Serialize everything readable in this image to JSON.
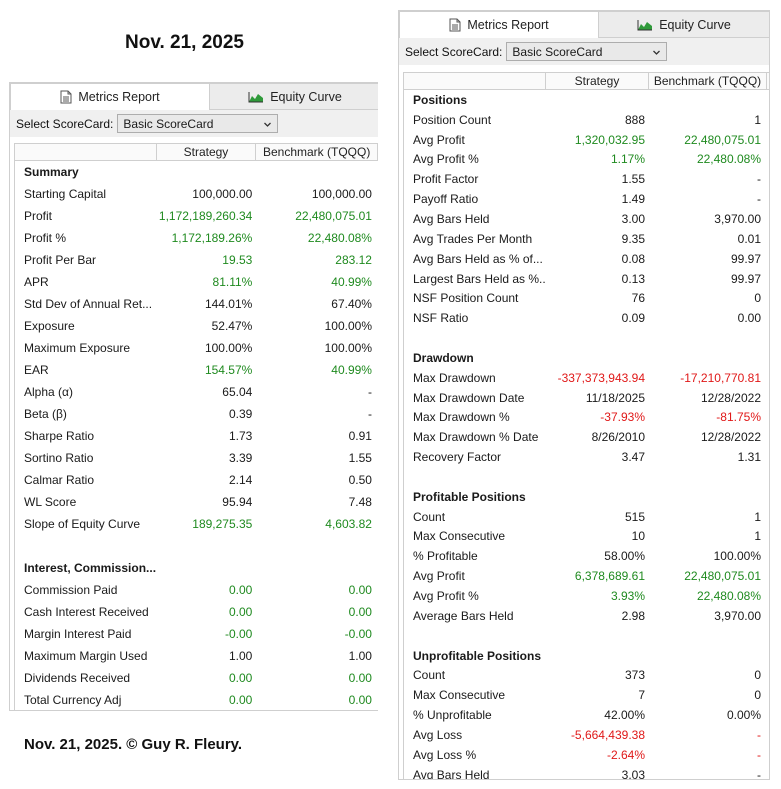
{
  "captions": {
    "top_date": "Nov. 21, 2025",
    "bottom_credit": "Nov. 21, 2025. © Guy R. Fleury."
  },
  "colors": {
    "positive": "#1f8a1f",
    "negative": "#e01818",
    "neutral": "#1a1a1a"
  },
  "tabs": [
    {
      "label": "Metrics Report",
      "icon": "document-icon",
      "active": true
    },
    {
      "label": "Equity Curve",
      "icon": "area-chart-icon",
      "active": false
    }
  ],
  "scorecard": {
    "label": "Select ScoreCard:",
    "value": "Basic ScoreCard"
  },
  "columns": {
    "strategy": "Strategy",
    "benchmark": "Benchmark (TQQQ)"
  },
  "left_rows": [
    {
      "type": "section",
      "name": "Summary"
    },
    {
      "name": "Starting Capital",
      "s": "100,000.00",
      "sc": "neu",
      "b": "100,000.00",
      "bc": "neu"
    },
    {
      "name": "Profit",
      "s": "1,172,189,260.34",
      "sc": "pos",
      "b": "22,480,075.01",
      "bc": "pos"
    },
    {
      "name": "Profit %",
      "s": "1,172,189.26%",
      "sc": "pos",
      "b": "22,480.08%",
      "bc": "pos"
    },
    {
      "name": "Profit Per Bar",
      "s": "19.53",
      "sc": "pos",
      "b": "283.12",
      "bc": "pos"
    },
    {
      "name": "APR",
      "s": "81.11%",
      "sc": "pos",
      "b": "40.99%",
      "bc": "pos"
    },
    {
      "name": "Std Dev of Annual Ret...",
      "s": "144.01%",
      "sc": "neu",
      "b": "67.40%",
      "bc": "neu"
    },
    {
      "name": "Exposure",
      "s": "52.47%",
      "sc": "neu",
      "b": "100.00%",
      "bc": "neu"
    },
    {
      "name": "Maximum Exposure",
      "s": "100.00%",
      "sc": "neu",
      "b": "100.00%",
      "bc": "neu"
    },
    {
      "name": "EAR",
      "s": "154.57%",
      "sc": "pos",
      "b": "40.99%",
      "bc": "pos"
    },
    {
      "name": "Alpha (α)",
      "s": "65.04",
      "sc": "neu",
      "b": "-",
      "bc": "neu"
    },
    {
      "name": "Beta (β)",
      "s": "0.39",
      "sc": "neu",
      "b": "-",
      "bc": "neu"
    },
    {
      "name": "Sharpe Ratio",
      "s": "1.73",
      "sc": "neu",
      "b": "0.91",
      "bc": "neu"
    },
    {
      "name": "Sortino Ratio",
      "s": "3.39",
      "sc": "neu",
      "b": "1.55",
      "bc": "neu"
    },
    {
      "name": "Calmar Ratio",
      "s": "2.14",
      "sc": "neu",
      "b": "0.50",
      "bc": "neu"
    },
    {
      "name": "WL Score",
      "s": "95.94",
      "sc": "neu",
      "b": "7.48",
      "bc": "neu"
    },
    {
      "name": "Slope of Equity Curve",
      "s": "189,275.35",
      "sc": "pos",
      "b": "4,603.82",
      "bc": "pos"
    },
    {
      "type": "blank"
    },
    {
      "type": "section",
      "name": "Interest, Commission..."
    },
    {
      "name": "Commission Paid",
      "s": "0.00",
      "sc": "pos",
      "b": "0.00",
      "bc": "pos"
    },
    {
      "name": "Cash Interest Received",
      "s": "0.00",
      "sc": "pos",
      "b": "0.00",
      "bc": "pos"
    },
    {
      "name": "Margin Interest Paid",
      "s": "-0.00",
      "sc": "pos",
      "b": "-0.00",
      "bc": "pos"
    },
    {
      "name": "Maximum Margin Used",
      "s": "1.00",
      "sc": "neu",
      "b": "1.00",
      "bc": "neu"
    },
    {
      "name": "Dividends Received",
      "s": "0.00",
      "sc": "pos",
      "b": "0.00",
      "bc": "pos"
    },
    {
      "name": "Total Currency Adj",
      "s": "0.00",
      "sc": "pos",
      "b": "0.00",
      "bc": "pos"
    }
  ],
  "right_rows": [
    {
      "type": "section",
      "name": "Positions"
    },
    {
      "name": "Position Count",
      "s": "888",
      "sc": "neu",
      "b": "1",
      "bc": "neu"
    },
    {
      "name": "Avg Profit",
      "s": "1,320,032.95",
      "sc": "pos",
      "b": "22,480,075.01",
      "bc": "pos"
    },
    {
      "name": "Avg Profit %",
      "s": "1.17%",
      "sc": "pos",
      "b": "22,480.08%",
      "bc": "pos"
    },
    {
      "name": "Profit Factor",
      "s": "1.55",
      "sc": "neu",
      "b": "-",
      "bc": "neu"
    },
    {
      "name": "Payoff Ratio",
      "s": "1.49",
      "sc": "neu",
      "b": "-",
      "bc": "neu"
    },
    {
      "name": "Avg Bars Held",
      "s": "3.00",
      "sc": "neu",
      "b": "3,970.00",
      "bc": "neu"
    },
    {
      "name": "Avg Trades Per Month",
      "s": "9.35",
      "sc": "neu",
      "b": "0.01",
      "bc": "neu"
    },
    {
      "name": "Avg Bars Held as % of...",
      "s": "0.08",
      "sc": "neu",
      "b": "99.97",
      "bc": "neu"
    },
    {
      "name": "Largest Bars Held as %...",
      "s": "0.13",
      "sc": "neu",
      "b": "99.97",
      "bc": "neu"
    },
    {
      "name": "NSF Position Count",
      "s": "76",
      "sc": "neu",
      "b": "0",
      "bc": "neu"
    },
    {
      "name": "NSF Ratio",
      "s": "0.09",
      "sc": "neu",
      "b": "0.00",
      "bc": "neu"
    },
    {
      "type": "blank"
    },
    {
      "type": "section",
      "name": "Drawdown"
    },
    {
      "name": "Max Drawdown",
      "s": "-337,373,943.94",
      "sc": "neg",
      "b": "-17,210,770.81",
      "bc": "neg"
    },
    {
      "name": "Max Drawdown Date",
      "s": "11/18/2025",
      "sc": "neu",
      "b": "12/28/2022",
      "bc": "neu"
    },
    {
      "name": "Max Drawdown %",
      "s": "-37.93%",
      "sc": "neg",
      "b": "-81.75%",
      "bc": "neg"
    },
    {
      "name": "Max Drawdown % Date",
      "s": "8/26/2010",
      "sc": "neu",
      "b": "12/28/2022",
      "bc": "neu"
    },
    {
      "name": "Recovery Factor",
      "s": "3.47",
      "sc": "neu",
      "b": "1.31",
      "bc": "neu"
    },
    {
      "type": "blank"
    },
    {
      "type": "section",
      "name": "Profitable Positions"
    },
    {
      "name": "Count",
      "s": "515",
      "sc": "neu",
      "b": "1",
      "bc": "neu"
    },
    {
      "name": "Max Consecutive",
      "s": "10",
      "sc": "neu",
      "b": "1",
      "bc": "neu"
    },
    {
      "name": "% Profitable",
      "s": "58.00%",
      "sc": "neu",
      "b": "100.00%",
      "bc": "neu"
    },
    {
      "name": "Avg Profit",
      "s": "6,378,689.61",
      "sc": "pos",
      "b": "22,480,075.01",
      "bc": "pos"
    },
    {
      "name": "Avg Profit %",
      "s": "3.93%",
      "sc": "pos",
      "b": "22,480.08%",
      "bc": "pos"
    },
    {
      "name": "Average Bars Held",
      "s": "2.98",
      "sc": "neu",
      "b": "3,970.00",
      "bc": "neu"
    },
    {
      "type": "blank"
    },
    {
      "type": "section",
      "name": "Unprofitable Positions"
    },
    {
      "name": "Count",
      "s": "373",
      "sc": "neu",
      "b": "0",
      "bc": "neu"
    },
    {
      "name": "Max Consecutive",
      "s": "7",
      "sc": "neu",
      "b": "0",
      "bc": "neu"
    },
    {
      "name": "% Unprofitable",
      "s": "42.00%",
      "sc": "neu",
      "b": "0.00%",
      "bc": "neu"
    },
    {
      "name": "Avg Loss",
      "s": "-5,664,439.38",
      "sc": "neg",
      "b": "-",
      "bc": "neg"
    },
    {
      "name": "Avg Loss %",
      "s": "-2.64%",
      "sc": "neg",
      "b": "-",
      "bc": "neg"
    },
    {
      "name": "Avg Bars Held",
      "s": "3.03",
      "sc": "neu",
      "b": "-",
      "bc": "neu"
    }
  ]
}
